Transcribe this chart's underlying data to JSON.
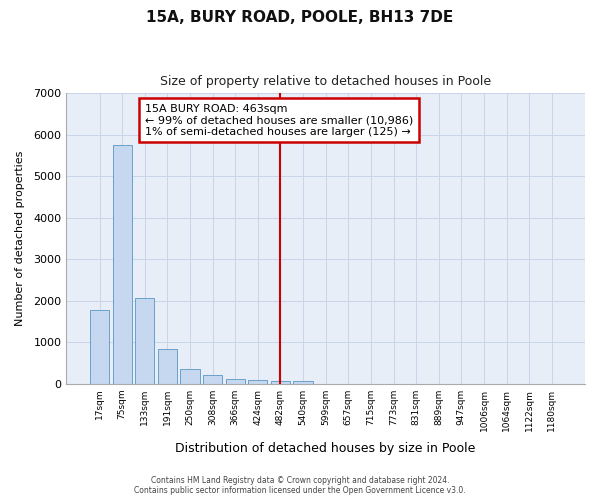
{
  "title": "15A, BURY ROAD, POOLE, BH13 7DE",
  "subtitle": "Size of property relative to detached houses in Poole",
  "xlabel": "Distribution of detached houses by size in Poole",
  "ylabel": "Number of detached properties",
  "footer_line1": "Contains HM Land Registry data © Crown copyright and database right 2024.",
  "footer_line2": "Contains public sector information licensed under the Open Government Licence v3.0.",
  "bar_color": "#c5d8f0",
  "bar_edge_color": "#6aa0cc",
  "grid_color": "#c8d4e8",
  "bg_color": "#e8eef8",
  "categories": [
    "17sqm",
    "75sqm",
    "133sqm",
    "191sqm",
    "250sqm",
    "308sqm",
    "366sqm",
    "424sqm",
    "482sqm",
    "540sqm",
    "599sqm",
    "657sqm",
    "715sqm",
    "773sqm",
    "831sqm",
    "889sqm",
    "947sqm",
    "1006sqm",
    "1064sqm",
    "1122sqm",
    "1180sqm"
  ],
  "values": [
    1780,
    5750,
    2060,
    830,
    370,
    210,
    120,
    100,
    80,
    80,
    0,
    0,
    0,
    0,
    0,
    0,
    0,
    0,
    0,
    0,
    0
  ],
  "annotation_line1": "15A BURY ROAD: 463sqm",
  "annotation_line2": "← 99% of detached houses are smaller (10,986)",
  "annotation_line3": "1% of semi-detached houses are larger (125) →",
  "vline_x_index": 8.0,
  "annotation_box_color": "#ffffff",
  "annotation_box_edge": "#cc0000",
  "vline_color": "#cc0000",
  "ylim": [
    0,
    7000
  ],
  "yticks": [
    0,
    1000,
    2000,
    3000,
    4000,
    5000,
    6000,
    7000
  ]
}
